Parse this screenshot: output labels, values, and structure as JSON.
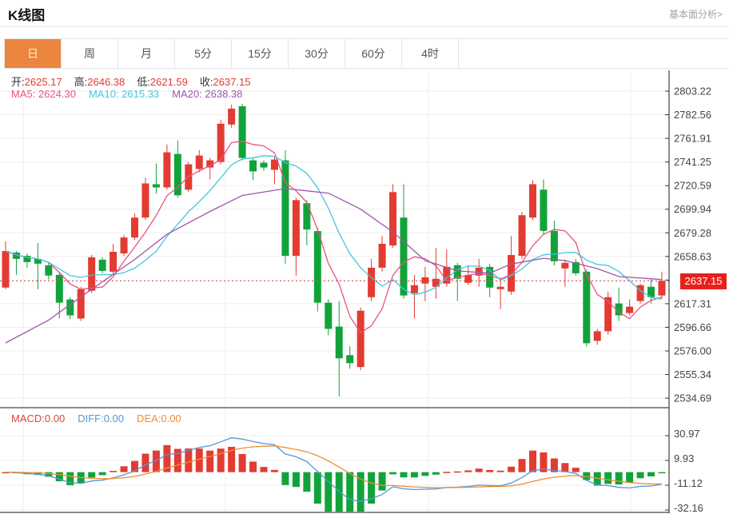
{
  "page": {
    "title": "K线图",
    "link": "基本面分析>"
  },
  "tabs": {
    "items": [
      "日",
      "周",
      "月",
      "5分",
      "15分",
      "30分",
      "60分",
      "4时"
    ],
    "active_index": 0
  },
  "quote": {
    "open_label": "开:",
    "open": "2625.17",
    "high_label": "高:",
    "high": "2646.38",
    "low_label": "低:",
    "low": "2621.59",
    "close_label": "收:",
    "close": "2637.15"
  },
  "ma_header": {
    "ma5_label": "MA5:",
    "ma5": "2624.30",
    "ma10_label": "MA10:",
    "ma10": "2615.33",
    "ma20_label": "MA20:",
    "ma20": "2638.38"
  },
  "macd_header": {
    "macd_label": "MACD:",
    "macd": "0.00",
    "diff_label": "DIFF:",
    "diff": "0.00",
    "dea_label": "DEA:",
    "dea": "0.00"
  },
  "current_price_label": "2637.15",
  "colors": {
    "up": "#e23b32",
    "down": "#11a33a",
    "ma5": "#e8537f",
    "ma10": "#45c5dd",
    "ma20": "#9e56ad",
    "diff": "#5596d8",
    "dea": "#ee8f35",
    "tab_active": "#ec8540",
    "badge": "#e7201c",
    "price_line": "#e14848",
    "zero_dash": "#9fd4e3",
    "grid": "#ededed",
    "axis": "#1a1a1a",
    "tick_label": "#444"
  },
  "chart_data": {
    "type": "candlestick",
    "panels": [
      "price",
      "macd"
    ],
    "legend": [
      "MA5",
      "MA10",
      "MA20",
      "MACD",
      "DIFF",
      "DEA"
    ],
    "grid": true,
    "price_axis_ticks": [
      2803.22,
      2782.56,
      2761.91,
      2741.25,
      2720.59,
      2699.94,
      2679.28,
      2658.63,
      2637.97,
      2617.31,
      2596.66,
      2576.0,
      2555.34,
      2534.69
    ],
    "macd_axis_ticks": [
      30.97,
      9.93,
      -11.12,
      -32.16
    ],
    "current_price": 2637.15,
    "ohlc_display": {
      "open": 2625.17,
      "high": 2646.38,
      "low": 2621.59,
      "close": 2637.15
    },
    "ma_display": {
      "ma5": 2624.3,
      "ma10": 2615.33,
      "ma20": 2638.38
    },
    "macd_display": {
      "macd": 0.0,
      "diff": 0.0,
      "dea": 0.0
    },
    "macd_params": {
      "fast": 12,
      "slow": 26,
      "signal": 9,
      "hist_mult": 2
    },
    "ma_periods": {
      "ma5": 5,
      "ma10": 10
    },
    "candles_ohlc": [
      [
        2631.4,
        2671.8,
        2630.0,
        2663.4
      ],
      [
        2662.0,
        2663.4,
        2642.5,
        2656.5
      ],
      [
        2659.2,
        2661.3,
        2648.8,
        2653.7
      ],
      [
        2656.5,
        2670.4,
        2630.0,
        2652.3
      ],
      [
        2650.9,
        2653.0,
        2638.4,
        2641.9
      ],
      [
        2642.5,
        2645.3,
        2604.3,
        2618.2
      ],
      [
        2621.0,
        2623.0,
        2603.6,
        2607.1
      ],
      [
        2604.3,
        2632.1,
        2602.2,
        2630.0
      ],
      [
        2628.6,
        2659.9,
        2626.5,
        2657.9
      ],
      [
        2655.8,
        2657.9,
        2643.9,
        2646.0
      ],
      [
        2645.3,
        2669.7,
        2642.5,
        2662.7
      ],
      [
        2661.3,
        2677.3,
        2659.2,
        2675.2
      ],
      [
        2675.2,
        2696.1,
        2673.1,
        2692.6
      ],
      [
        2692.6,
        2727.4,
        2690.5,
        2722.5
      ],
      [
        2721.8,
        2739.9,
        2713.5,
        2719.0
      ],
      [
        2719.0,
        2756.6,
        2717.0,
        2749.7
      ],
      [
        2748.3,
        2760.1,
        2710.0,
        2712.1
      ],
      [
        2717.0,
        2741.3,
        2714.9,
        2739.2
      ],
      [
        2735.1,
        2751.7,
        2732.3,
        2746.9
      ],
      [
        2736.4,
        2744.8,
        2726.0,
        2742.7
      ],
      [
        2741.3,
        2778.2,
        2739.2,
        2774.7
      ],
      [
        2774.0,
        2791.4,
        2771.2,
        2787.9
      ],
      [
        2790.0,
        2792.1,
        2742.7,
        2744.8
      ],
      [
        2742.7,
        2744.8,
        2725.3,
        2733.0
      ],
      [
        2740.6,
        2742.7,
        2733.7,
        2736.4
      ],
      [
        2734.4,
        2746.2,
        2721.8,
        2743.4
      ],
      [
        2742.7,
        2751.7,
        2652.3,
        2659.2
      ],
      [
        2659.2,
        2710.0,
        2641.9,
        2707.9
      ],
      [
        2705.2,
        2707.9,
        2668.3,
        2682.2
      ],
      [
        2680.8,
        2683.6,
        2610.5,
        2618.2
      ],
      [
        2618.2,
        2621.0,
        2589.7,
        2595.3
      ],
      [
        2597.3,
        2619.6,
        2536.1,
        2569.5
      ],
      [
        2572.3,
        2579.9,
        2560.5,
        2565.3
      ],
      [
        2561.9,
        2614.0,
        2559.1,
        2611.2
      ],
      [
        2623.0,
        2656.5,
        2619.6,
        2648.8
      ],
      [
        2648.8,
        2676.6,
        2645.3,
        2669.7
      ],
      [
        2668.3,
        2721.8,
        2666.2,
        2714.9
      ],
      [
        2692.6,
        2721.8,
        2621.7,
        2624.5
      ],
      [
        2626.5,
        2642.5,
        2604.3,
        2633.5
      ],
      [
        2634.9,
        2649.5,
        2619.6,
        2640.4
      ],
      [
        2632.1,
        2666.2,
        2621.7,
        2639.1
      ],
      [
        2634.9,
        2664.8,
        2632.1,
        2649.5
      ],
      [
        2650.9,
        2653.0,
        2619.6,
        2639.1
      ],
      [
        2635.6,
        2650.9,
        2633.5,
        2642.5
      ],
      [
        2641.9,
        2656.5,
        2632.1,
        2648.8
      ],
      [
        2649.5,
        2652.3,
        2623.0,
        2631.4
      ],
      [
        2630.0,
        2640.4,
        2612.6,
        2632.1
      ],
      [
        2627.9,
        2676.6,
        2625.1,
        2659.9
      ],
      [
        2659.2,
        2697.5,
        2656.5,
        2694.7
      ],
      [
        2692.6,
        2725.3,
        2690.5,
        2721.8
      ],
      [
        2717.0,
        2726.0,
        2678.0,
        2681.0
      ],
      [
        2681.0,
        2690.0,
        2650.9,
        2654.4
      ],
      [
        2648.1,
        2655.8,
        2632.1,
        2653.0
      ],
      [
        2653.7,
        2656.5,
        2641.9,
        2643.9
      ],
      [
        2645.3,
        2647.4,
        2579.9,
        2582.7
      ],
      [
        2584.8,
        2595.3,
        2581.3,
        2593.2
      ],
      [
        2593.2,
        2627.9,
        2590.4,
        2623.0
      ],
      [
        2617.5,
        2631.4,
        2602.2,
        2607.1
      ],
      [
        2609.1,
        2621.0,
        2607.1,
        2614.7
      ],
      [
        2619.6,
        2634.9,
        2617.5,
        2633.5
      ],
      [
        2632.1,
        2638.4,
        2617.5,
        2623.0
      ],
      [
        2624.5,
        2645.3,
        2621.7,
        2637.2
      ]
    ],
    "ma20_anchors": [
      [
        0,
        2583
      ],
      [
        4,
        2603
      ],
      [
        8,
        2630
      ],
      [
        12,
        2656
      ],
      [
        15,
        2678
      ],
      [
        19,
        2698
      ],
      [
        22,
        2712
      ],
      [
        26,
        2718
      ],
      [
        30,
        2714
      ],
      [
        33,
        2700
      ],
      [
        36,
        2680
      ],
      [
        39,
        2655
      ],
      [
        42,
        2646
      ],
      [
        45,
        2644
      ],
      [
        47,
        2652
      ],
      [
        50,
        2657
      ],
      [
        52,
        2655
      ],
      [
        55,
        2648
      ],
      [
        57,
        2641
      ],
      [
        61,
        2638.4
      ]
    ]
  }
}
